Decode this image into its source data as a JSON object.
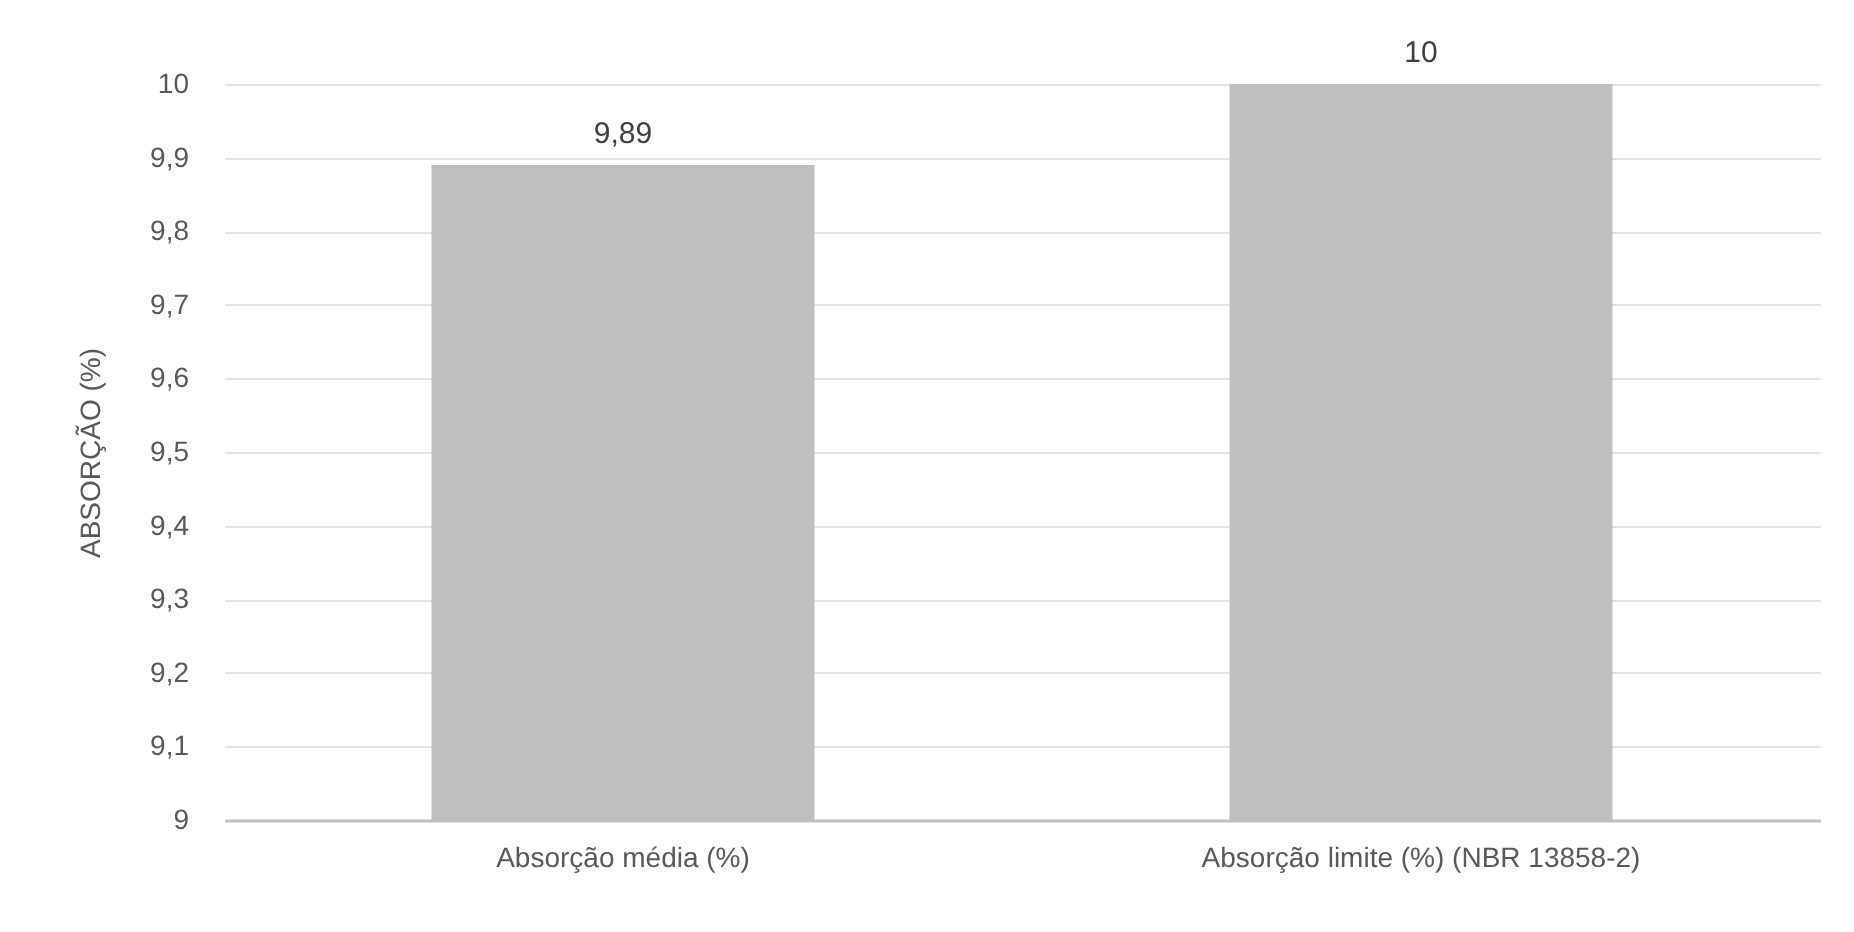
{
  "chart_data": {
    "type": "bar",
    "ylabel": "ABSORÇÃO (%)",
    "categories": [
      "Absorção média (%)",
      "Absorção limite (%) (NBR 13858-2)"
    ],
    "values": [
      9.89,
      10
    ],
    "value_labels": [
      "9,89",
      "10"
    ],
    "color": "#bfbfbf",
    "ylim": [
      9,
      10
    ],
    "yticks": [
      {
        "value": 9,
        "label": "9"
      },
      {
        "value": 9.1,
        "label": "9,1"
      },
      {
        "value": 9.2,
        "label": "9,2"
      },
      {
        "value": 9.3,
        "label": "9,3"
      },
      {
        "value": 9.4,
        "label": "9,4"
      },
      {
        "value": 9.5,
        "label": "9,5"
      },
      {
        "value": 9.6,
        "label": "9,6"
      },
      {
        "value": 9.7,
        "label": "9,7"
      },
      {
        "value": 9.8,
        "label": "9,8"
      },
      {
        "value": 9.9,
        "label": "9,9"
      },
      {
        "value": 10,
        "label": "10"
      }
    ],
    "grid": "y"
  }
}
